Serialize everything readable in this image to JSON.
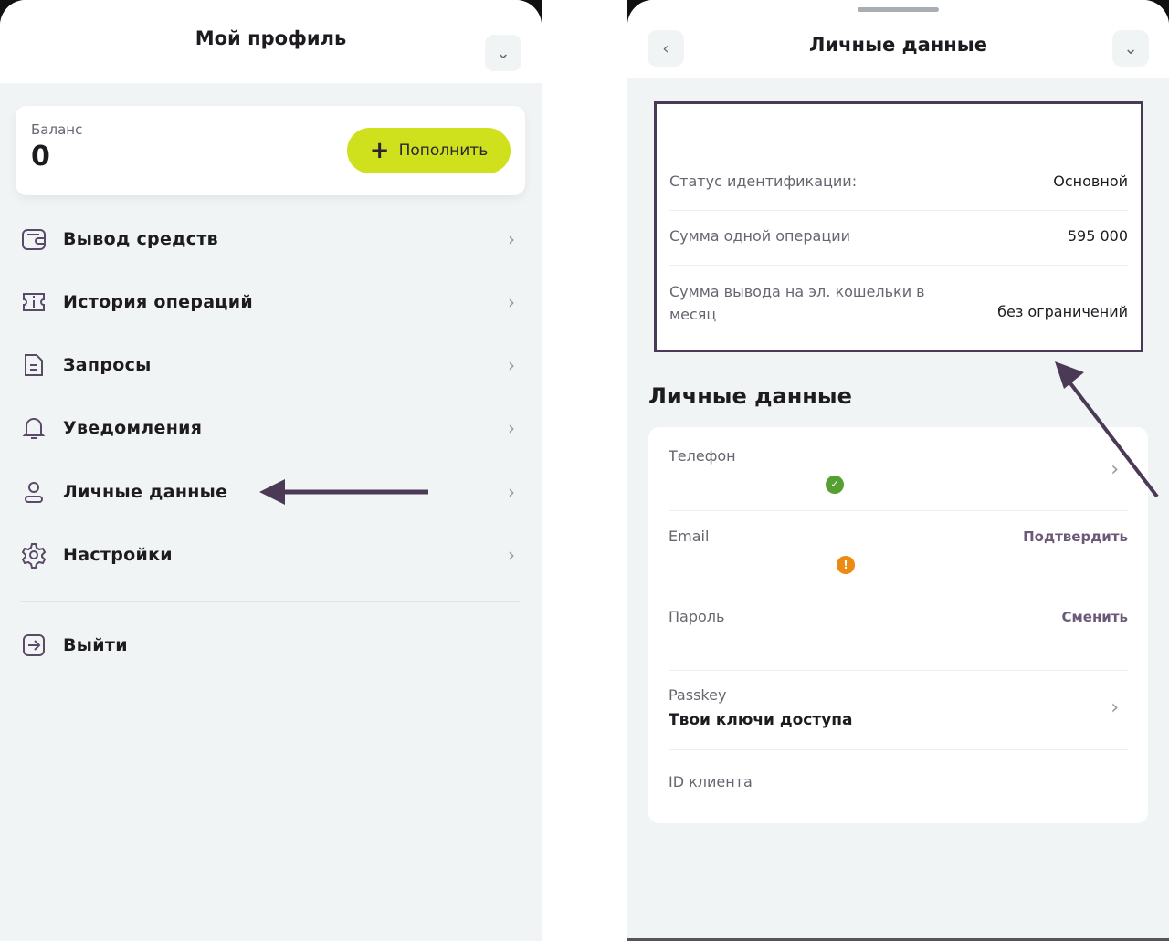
{
  "left": {
    "title": "Мой профиль",
    "balance": {
      "label": "Баланс",
      "value": "0",
      "topup_label": "Пополнить",
      "accent": "#cfe01c"
    },
    "menu": [
      {
        "label": "Вывод средств",
        "icon": "wallet-icon"
      },
      {
        "label": "История операций",
        "icon": "ticket-icon"
      },
      {
        "label": "Запросы",
        "icon": "document-icon"
      },
      {
        "label": "Уведомления",
        "icon": "bell-icon"
      },
      {
        "label": "Личные данные",
        "icon": "user-icon"
      },
      {
        "label": "Настройки",
        "icon": "gear-icon"
      }
    ],
    "logout": {
      "label": "Выйти",
      "icon": "logout-icon"
    }
  },
  "right": {
    "title": "Личные данные",
    "limits": [
      {
        "label": "Статус идентификации:",
        "value": "Основной"
      },
      {
        "label": "Сумма одной операции",
        "value": "595 000"
      },
      {
        "label": "Сумма вывода на эл. кошельки в месяц",
        "value": "без ограничений"
      }
    ],
    "section_title": "Личные данные",
    "fields": {
      "phone": {
        "label": "Телефон",
        "status": "verified"
      },
      "email": {
        "label": "Email",
        "action": "Подтвердить",
        "status": "warning"
      },
      "password": {
        "label": "Пароль",
        "action": "Сменить"
      },
      "passkey": {
        "label": "Passkey",
        "value": "Твои ключи доступа"
      },
      "client_id": {
        "label": "ID клиента"
      }
    },
    "highlight_color": "#4a3a55",
    "success_color": "#55a030",
    "warning_color": "#ec8a12"
  }
}
